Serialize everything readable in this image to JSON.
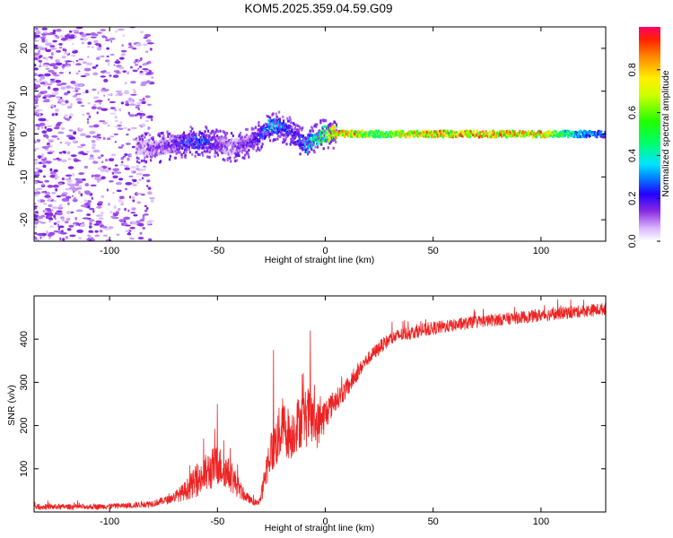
{
  "title": "KOM5.2025.359.04.59.G09",
  "chart_data": [
    {
      "type": "heatmap",
      "name": "spectrogram",
      "xlabel": "Height of straight line (km)",
      "ylabel": "Frequency (Hz)",
      "xlim": [
        -135,
        130
      ],
      "ylim": [
        -25,
        25
      ],
      "xticks": [
        -100,
        -50,
        0,
        50,
        100
      ],
      "xtick_labels": [
        "-100",
        "-50",
        "0",
        "50",
        "100"
      ],
      "yticks": [
        -20,
        -10,
        0,
        10,
        20
      ],
      "ytick_labels": [
        "-20",
        "-10",
        "0",
        "10",
        "20"
      ],
      "colorbar": {
        "label": "Normalized spectral amplitude",
        "range": [
          0,
          1
        ],
        "ticks": [
          0.0,
          0.2,
          0.4,
          0.6,
          0.8
        ],
        "tick_labels": [
          "0.0",
          "0.2",
          "0.4",
          "0.6",
          "0.8"
        ]
      },
      "trace_points": {
        "height_km": [
          -87,
          -80,
          -72,
          -65,
          -58,
          -50,
          -44,
          -38,
          -32,
          -27,
          -22,
          -17,
          -13,
          -9,
          -5,
          -1,
          3,
          8,
          15,
          25,
          40,
          60,
          80,
          100,
          115,
          130
        ],
        "frequency_hz": [
          -3,
          -3.5,
          -2.5,
          -2,
          -1.5,
          -2.5,
          -3,
          -2.5,
          -1,
          1.5,
          2,
          0.5,
          -1.5,
          -2.5,
          -1,
          0,
          0.2,
          0,
          0,
          0,
          0,
          0,
          0,
          0,
          0,
          0
        ],
        "amplitude": [
          0.1,
          0.15,
          0.2,
          0.3,
          0.35,
          0.2,
          0.15,
          0.2,
          0.25,
          0.45,
          0.4,
          0.3,
          0.3,
          0.45,
          0.5,
          0.65,
          0.9,
          0.95,
          0.9,
          0.6,
          0.9,
          0.95,
          0.95,
          0.9,
          0.45,
          0.3
        ]
      }
    },
    {
      "type": "line",
      "name": "snr",
      "xlabel": "Height of straight line (km)",
      "ylabel": "SNR (v/v)",
      "xlim": [
        -135,
        130
      ],
      "ylim": [
        0,
        500
      ],
      "xticks": [
        -100,
        -50,
        0,
        50,
        100
      ],
      "xtick_labels": [
        "-100",
        "-50",
        "0",
        "50",
        "100"
      ],
      "yticks": [
        100,
        200,
        300,
        400
      ],
      "ytick_labels": [
        "100",
        "200",
        "300",
        "400"
      ],
      "series": [
        {
          "name": "SNR",
          "color": "#ee2222",
          "x": [
            -135,
            -110,
            -90,
            -80,
            -72,
            -66,
            -60,
            -55,
            -50,
            -46,
            -42,
            -38,
            -34,
            -32,
            -30,
            -28,
            -26,
            -24,
            -22,
            -20,
            -18,
            -16,
            -14,
            -12,
            -10,
            -8,
            -6,
            -4,
            -2,
            0,
            2,
            4,
            6,
            8,
            10,
            12,
            14,
            16,
            18,
            20,
            22,
            24,
            26,
            28,
            30,
            35,
            40,
            45,
            50,
            60,
            70,
            80,
            90,
            100,
            110,
            120,
            130
          ],
          "mean": [
            12,
            12,
            15,
            20,
            30,
            45,
            70,
            90,
            110,
            95,
            70,
            40,
            25,
            20,
            30,
            80,
            130,
            150,
            170,
            200,
            190,
            175,
            195,
            210,
            215,
            220,
            215,
            200,
            210,
            225,
            240,
            255,
            265,
            275,
            285,
            300,
            315,
            330,
            345,
            355,
            365,
            375,
            385,
            392,
            400,
            410,
            415,
            420,
            425,
            432,
            440,
            445,
            450,
            455,
            460,
            465,
            470
          ],
          "spread": [
            8,
            8,
            8,
            10,
            12,
            25,
            45,
            60,
            60,
            50,
            40,
            18,
            10,
            8,
            15,
            40,
            60,
            70,
            80,
            85,
            80,
            70,
            75,
            80,
            80,
            90,
            80,
            70,
            60,
            50,
            40,
            35,
            30,
            30,
            28,
            26,
            24,
            22,
            20,
            20,
            20,
            20,
            20,
            20,
            20,
            20,
            20,
            20,
            20,
            18,
            18,
            18,
            18,
            18,
            18,
            18,
            18
          ]
        }
      ],
      "annotations": [
        {
          "x": -50,
          "y": 250
        },
        {
          "x": -7,
          "y": 420
        },
        {
          "x": -24,
          "y": 375
        }
      ]
    }
  ]
}
